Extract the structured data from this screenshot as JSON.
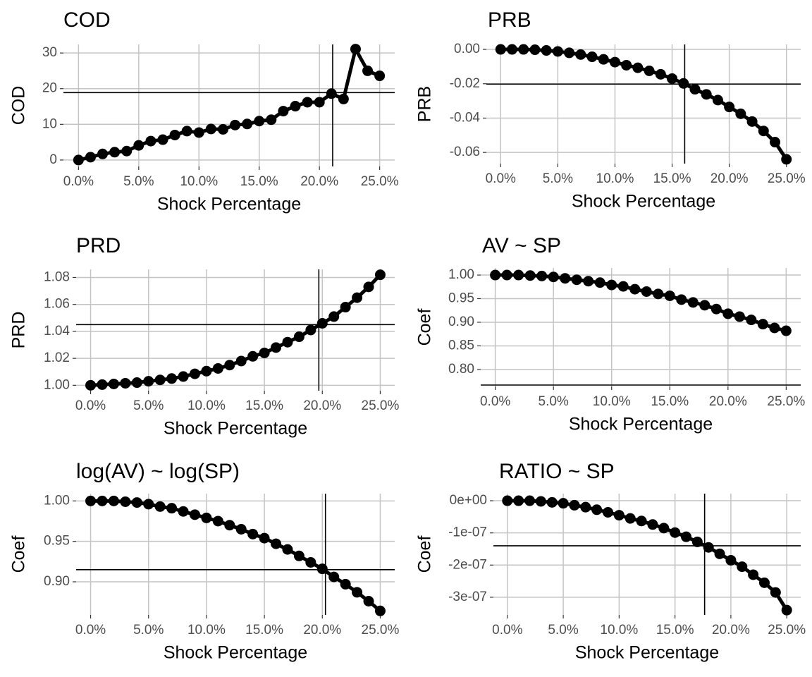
{
  "chart_data": [
    {
      "type": "line",
      "title": "COD",
      "xlabel": "Shock Percentage",
      "ylabel": "COD",
      "color": "#000000",
      "grid": true,
      "x": [
        0,
        0.01,
        0.02,
        0.03,
        0.04,
        0.05,
        0.06,
        0.07,
        0.08,
        0.09,
        0.1,
        0.11,
        0.12,
        0.13,
        0.14,
        0.15,
        0.16,
        0.17,
        0.18,
        0.19,
        0.2,
        0.21,
        0.22,
        0.23,
        0.24,
        0.25
      ],
      "values": [
        0,
        0.8,
        1.7,
        2.2,
        2.5,
        4.1,
        5.3,
        5.7,
        7,
        8.1,
        7.7,
        8.7,
        8.6,
        9.8,
        10.1,
        10.9,
        11.3,
        13.7,
        15.1,
        16.2,
        16.2,
        18.6,
        17.1,
        31.1,
        25,
        23.6
      ],
      "xlim": [
        -0.0125,
        0.2625
      ],
      "xticks": [
        {
          "value": 0,
          "label": "0.0%"
        },
        {
          "value": 0.05,
          "label": "5.0%"
        },
        {
          "value": 0.1,
          "label": "10.0%"
        },
        {
          "value": 0.15,
          "label": "15.0%"
        },
        {
          "value": 0.2,
          "label": "20.0%"
        },
        {
          "value": 0.25,
          "label": "25.0%"
        }
      ],
      "ylim": [
        -1.8,
        32.4
      ],
      "yticks": [
        0,
        10,
        20,
        30
      ],
      "hline": 18.9,
      "vline": 0.211
    },
    {
      "type": "line",
      "title": "PRB",
      "xlabel": "Shock Percentage",
      "ylabel": "PRB",
      "color": "#000000",
      "grid": true,
      "x": [
        0,
        0.01,
        0.02,
        0.03,
        0.04,
        0.05,
        0.06,
        0.07,
        0.08,
        0.09,
        0.1,
        0.11,
        0.12,
        0.13,
        0.14,
        0.15,
        0.16,
        0.17,
        0.18,
        0.19,
        0.2,
        0.21,
        0.22,
        0.23,
        0.24,
        0.25
      ],
      "values": [
        0,
        0,
        0,
        -0.0002,
        -0.0006,
        -0.0012,
        -0.002,
        -0.003,
        -0.0043,
        -0.0058,
        -0.0074,
        -0.0092,
        -0.0107,
        -0.0125,
        -0.0145,
        -0.017,
        -0.0198,
        -0.0232,
        -0.0262,
        -0.0295,
        -0.0335,
        -0.0375,
        -0.042,
        -0.0475,
        -0.054,
        -0.064
      ],
      "xlim": [
        -0.0125,
        0.2625
      ],
      "xticks": [
        {
          "value": 0,
          "label": "0.0%"
        },
        {
          "value": 0.05,
          "label": "5.0%"
        },
        {
          "value": 0.1,
          "label": "10.0%"
        },
        {
          "value": 0.15,
          "label": "15.0%"
        },
        {
          "value": 0.2,
          "label": "20.0%"
        },
        {
          "value": 0.25,
          "label": "25.0%"
        }
      ],
      "ylim": [
        -0.0665,
        0.0029
      ],
      "yticks": [
        {
          "value": 0,
          "label": "0.00"
        },
        -0.02,
        -0.04,
        -0.06
      ],
      "hline": -0.0202,
      "vline": 0.161
    },
    {
      "type": "line",
      "title": "PRD",
      "xlabel": "Shock Percentage",
      "ylabel": "PRD",
      "color": "#000000",
      "grid": true,
      "x": [
        0,
        0.01,
        0.02,
        0.03,
        0.04,
        0.05,
        0.06,
        0.07,
        0.08,
        0.09,
        0.1,
        0.11,
        0.12,
        0.13,
        0.14,
        0.15,
        0.16,
        0.17,
        0.18,
        0.19,
        0.2,
        0.21,
        0.22,
        0.23,
        0.24,
        0.25
      ],
      "values": [
        1.0,
        1.0005,
        1.001,
        1.0015,
        1.002,
        1.003,
        1.004,
        1.005,
        1.0065,
        1.0085,
        1.0105,
        1.0125,
        1.015,
        1.018,
        1.0215,
        1.024,
        1.028,
        1.032,
        1.036,
        1.041,
        1.046,
        1.051,
        1.058,
        1.065,
        1.073,
        1.082
      ],
      "xlim": [
        -0.0125,
        0.2625
      ],
      "xticks": [
        {
          "value": 0,
          "label": "0.0%"
        },
        {
          "value": 0.05,
          "label": "5.0%"
        },
        {
          "value": 0.1,
          "label": "10.0%"
        },
        {
          "value": 0.15,
          "label": "15.0%"
        },
        {
          "value": 0.2,
          "label": "20.0%"
        },
        {
          "value": 0.25,
          "label": "25.0%"
        }
      ],
      "ylim": [
        0.996,
        1.086
      ],
      "yticks": [
        {
          "value": 1,
          "label": "1.00"
        },
        1.02,
        1.04,
        1.06,
        1.08
      ],
      "hline": 1.045,
      "vline": 0.197
    },
    {
      "type": "line",
      "title": "AV ~ SP",
      "xlabel": "Shock Percentage",
      "ylabel": "Coef",
      "color": "#000000",
      "grid": true,
      "x": [
        0,
        0.01,
        0.02,
        0.03,
        0.04,
        0.05,
        0.06,
        0.07,
        0.08,
        0.09,
        0.1,
        0.11,
        0.12,
        0.13,
        0.14,
        0.15,
        0.16,
        0.17,
        0.18,
        0.19,
        0.2,
        0.21,
        0.22,
        0.23,
        0.24,
        0.25
      ],
      "values": [
        1.0,
        1.0,
        1.0,
        0.999,
        0.998,
        0.996,
        0.993,
        0.99,
        0.987,
        0.984,
        0.979,
        0.976,
        0.97,
        0.965,
        0.96,
        0.956,
        0.948,
        0.942,
        0.936,
        0.928,
        0.918,
        0.912,
        0.905,
        0.896,
        0.888,
        0.882
      ],
      "xlim": [
        -0.0125,
        0.2625
      ],
      "xticks": [
        {
          "value": 0,
          "label": "0.0%"
        },
        {
          "value": 0.05,
          "label": "5.0%"
        },
        {
          "value": 0.1,
          "label": "10.0%"
        },
        {
          "value": 0.15,
          "label": "15.0%"
        },
        {
          "value": 0.2,
          "label": "20.0%"
        },
        {
          "value": 0.25,
          "label": "25.0%"
        }
      ],
      "ylim": [
        0.764,
        1.015
      ],
      "yticks": [
        {
          "value": 1,
          "label": "1.00"
        },
        0.95,
        {
          "value": 0.9,
          "label": "0.90"
        },
        0.85,
        {
          "value": 0.8,
          "label": "0.80"
        }
      ],
      "hline": 0.767
    },
    {
      "type": "line",
      "title": "log(AV) ~ log(SP)",
      "xlabel": "Shock Percentage",
      "ylabel": "Coef",
      "color": "#000000",
      "grid": true,
      "x": [
        0,
        0.01,
        0.02,
        0.03,
        0.04,
        0.05,
        0.06,
        0.07,
        0.08,
        0.09,
        0.1,
        0.11,
        0.12,
        0.13,
        0.14,
        0.15,
        0.16,
        0.17,
        0.18,
        0.19,
        0.2,
        0.21,
        0.22,
        0.23,
        0.24,
        0.25
      ],
      "values": [
        1.0,
        1.0,
        1.0,
        0.999,
        0.998,
        0.996,
        0.993,
        0.991,
        0.987,
        0.983,
        0.979,
        0.975,
        0.97,
        0.965,
        0.959,
        0.954,
        0.947,
        0.94,
        0.932,
        0.924,
        0.916,
        0.906,
        0.897,
        0.887,
        0.876,
        0.864
      ],
      "xlim": [
        -0.0125,
        0.2625
      ],
      "xticks": [
        {
          "value": 0,
          "label": "0.0%"
        },
        {
          "value": 0.05,
          "label": "5.0%"
        },
        {
          "value": 0.1,
          "label": "10.0%"
        },
        {
          "value": 0.15,
          "label": "15.0%"
        },
        {
          "value": 0.2,
          "label": "20.0%"
        },
        {
          "value": 0.25,
          "label": "25.0%"
        }
      ],
      "ylim": [
        0.859,
        1.009
      ],
      "yticks": [
        {
          "value": 1,
          "label": "1.00"
        },
        0.95,
        {
          "value": 0.9,
          "label": "0.90"
        }
      ],
      "hline": 0.915,
      "vline": 0.2027
    },
    {
      "type": "line",
      "title": "RATIO ~ SP",
      "xlabel": "Shock Percentage",
      "ylabel": "Coef",
      "color": "#000000",
      "grid": true,
      "x": [
        0,
        0.01,
        0.02,
        0.03,
        0.04,
        0.05,
        0.06,
        0.07,
        0.08,
        0.09,
        0.1,
        0.11,
        0.12,
        0.13,
        0.14,
        0.15,
        0.16,
        0.17,
        0.18,
        0.19,
        0.2,
        0.21,
        0.22,
        0.23,
        0.24,
        0.25
      ],
      "values": [
        0,
        0,
        0,
        -2e-09,
        -5e-09,
        -8e-09,
        -1.4e-08,
        -2e-08,
        -2.8e-08,
        -3.6e-08,
        -4.5e-08,
        -5.5e-08,
        -6.3e-08,
        -7.4e-08,
        -8.5e-08,
        -9.9e-08,
        -1.12e-07,
        -1.28e-07,
        -1.45e-07,
        -1.65e-07,
        -1.85e-07,
        -2.05e-07,
        -2.3e-07,
        -2.55e-07,
        -2.85e-07,
        -3.4e-07
      ],
      "xlim": [
        -0.0125,
        0.2625
      ],
      "xticks": [
        {
          "value": 0,
          "label": "0.0%"
        },
        {
          "value": 0.05,
          "label": "5.0%"
        },
        {
          "value": 0.1,
          "label": "10.0%"
        },
        {
          "value": 0.15,
          "label": "15.0%"
        },
        {
          "value": 0.2,
          "label": "20.0%"
        },
        {
          "value": 0.25,
          "label": "25.0%"
        }
      ],
      "ylim": [
        -3.55e-07,
        2.2e-08
      ],
      "yticks": [
        {
          "value": 0,
          "label": "0e+00"
        },
        {
          "value": -1e-07,
          "label": "-1e-07"
        },
        {
          "value": -2e-07,
          "label": "-2e-07"
        },
        {
          "value": -3e-07,
          "label": "-3e-07"
        }
      ],
      "hline": -1.4e-07,
      "vline": 0.1765
    }
  ]
}
